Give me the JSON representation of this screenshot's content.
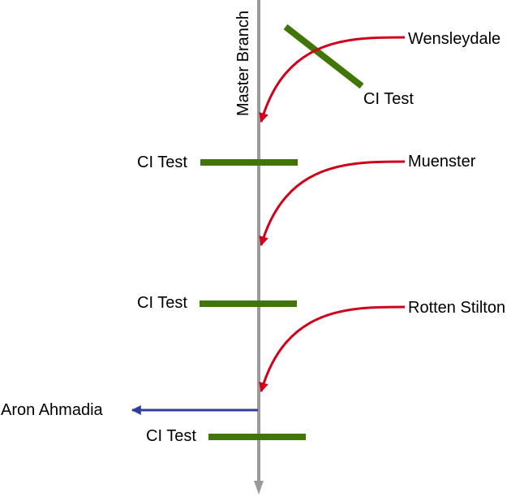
{
  "master_branch": {
    "label": "Master Branch"
  },
  "merges": [
    {
      "label": "Wensleydale"
    },
    {
      "label": "Muenster"
    },
    {
      "label": "Rotten Stilton"
    }
  ],
  "ci_tests": [
    {
      "label": "CI Test"
    },
    {
      "label": "CI Test"
    },
    {
      "label": "CI Test"
    },
    {
      "label": "CI Test"
    }
  ],
  "output": {
    "label": "Aron Ahmadia"
  },
  "colors": {
    "branch": "#9a9a9a",
    "merge_arrow": "#d0021b",
    "ci_test": "#417505",
    "output_arrow": "#2e3e9e"
  }
}
